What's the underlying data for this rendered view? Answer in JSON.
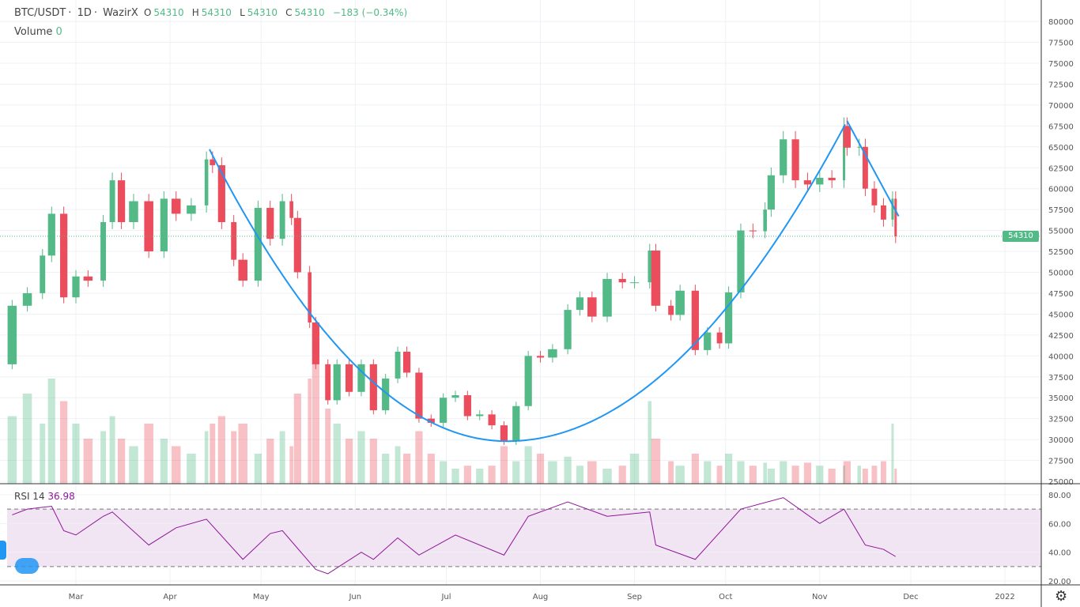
{
  "header": {
    "symbol": "BTC/USDT",
    "interval": "1D",
    "exchange": "WazirX",
    "o_label": "O",
    "o": "54310",
    "h_label": "H",
    "h": "54310",
    "l_label": "L",
    "l": "54310",
    "c_label": "C",
    "c": "54310",
    "change": "−183 (−0.34%)",
    "volume_label": "Volume",
    "volume": "0"
  },
  "rsi": {
    "label": "RSI 14",
    "value": "36.98"
  },
  "last_price_label": "54310",
  "colors": {
    "up": "#53b987",
    "down": "#eb4d5c",
    "rsi": "#8e1599",
    "drawing": "#2196f3",
    "rsi_band": "#f1e4f3"
  },
  "chart_data": [
    {
      "type": "candlestick",
      "pane": "price",
      "ylim": [
        25000,
        80000
      ],
      "yticks": [
        25000,
        27500,
        30000,
        32500,
        35000,
        37500,
        40000,
        42500,
        45000,
        47500,
        50000,
        52500,
        55000,
        57500,
        60000,
        62500,
        65000,
        67500,
        70000,
        72500,
        75000,
        77500,
        80000
      ],
      "xticks": [
        {
          "date": "2021-03-01",
          "label": "Mar"
        },
        {
          "date": "2021-04-01",
          "label": "Apr"
        },
        {
          "date": "2021-05-01",
          "label": "May"
        },
        {
          "date": "2021-06-01",
          "label": "Jun"
        },
        {
          "date": "2021-07-01",
          "label": "Jul"
        },
        {
          "date": "2021-08-01",
          "label": "Aug"
        },
        {
          "date": "2021-09-01",
          "label": "Sep"
        },
        {
          "date": "2021-10-01",
          "label": "Oct"
        },
        {
          "date": "2021-11-01",
          "label": "Nov"
        },
        {
          "date": "2021-12-01",
          "label": "Dec"
        },
        {
          "date": "2022-01-01",
          "label": "2022"
        }
      ],
      "grid": true,
      "open_start": 39000,
      "dates": [
        "2021-02-08",
        "2021-02-13",
        "2021-02-18",
        "2021-02-21",
        "2021-02-25",
        "2021-03-01",
        "2021-03-05",
        "2021-03-10",
        "2021-03-13",
        "2021-03-16",
        "2021-03-20",
        "2021-03-25",
        "2021-03-30",
        "2021-04-03",
        "2021-04-08",
        "2021-04-13",
        "2021-04-15",
        "2021-04-18",
        "2021-04-22",
        "2021-04-25",
        "2021-04-30",
        "2021-05-04",
        "2021-05-08",
        "2021-05-11",
        "2021-05-13",
        "2021-05-17",
        "2021-05-19",
        "2021-05-23",
        "2021-05-26",
        "2021-05-30",
        "2021-06-03",
        "2021-06-07",
        "2021-06-11",
        "2021-06-15",
        "2021-06-18",
        "2021-06-22",
        "2021-06-26",
        "2021-06-30",
        "2021-07-04",
        "2021-07-08",
        "2021-07-12",
        "2021-07-16",
        "2021-07-20",
        "2021-07-24",
        "2021-07-28",
        "2021-08-01",
        "2021-08-05",
        "2021-08-10",
        "2021-08-14",
        "2021-08-18",
        "2021-08-23",
        "2021-08-28",
        "2021-09-01",
        "2021-09-06",
        "2021-09-08",
        "2021-09-13",
        "2021-09-16",
        "2021-09-21",
        "2021-09-25",
        "2021-09-29",
        "2021-10-02",
        "2021-10-06",
        "2021-10-10",
        "2021-10-14",
        "2021-10-16",
        "2021-10-20",
        "2021-10-24",
        "2021-10-28",
        "2021-11-01",
        "2021-11-05",
        "2021-11-09",
        "2021-11-10",
        "2021-11-14",
        "2021-11-16",
        "2021-11-19",
        "2021-11-22",
        "2021-11-25",
        "2021-11-26"
      ],
      "close": [
        46000,
        47500,
        52000,
        57000,
        47000,
        49500,
        49000,
        56000,
        61000,
        56000,
        58500,
        52500,
        58800,
        57000,
        58000,
        63500,
        62800,
        56000,
        51500,
        49000,
        57700,
        54000,
        58500,
        56500,
        50000,
        44000,
        39000,
        34700,
        39000,
        35700,
        39000,
        33500,
        37300,
        40500,
        38000,
        32500,
        32000,
        35000,
        35300,
        32800,
        33000,
        31700,
        29800,
        34000,
        40000,
        39800,
        40800,
        45500,
        47000,
        44700,
        49200,
        48800,
        48800,
        52600,
        46000,
        44900,
        47800,
        40700,
        42800,
        41500,
        47600,
        55000,
        54900,
        57500,
        61600,
        65900,
        61000,
        60500,
        61300,
        61000,
        67500,
        64900,
        65000,
        60000,
        58000,
        56300,
        58800,
        54310
      ],
      "volume_relative": [
        45,
        60,
        40,
        70,
        55,
        40,
        30,
        35,
        45,
        30,
        25,
        40,
        30,
        25,
        20,
        35,
        40,
        45,
        35,
        40,
        20,
        30,
        35,
        25,
        60,
        70,
        80,
        50,
        40,
        30,
        35,
        30,
        20,
        25,
        20,
        35,
        20,
        15,
        10,
        12,
        10,
        12,
        25,
        15,
        25,
        20,
        15,
        18,
        12,
        15,
        10,
        12,
        20,
        55,
        30,
        15,
        12,
        20,
        15,
        12,
        20,
        15,
        12,
        14,
        10,
        15,
        12,
        14,
        12,
        10,
        12,
        15,
        12,
        10,
        12,
        15,
        40,
        10
      ]
    },
    {
      "type": "line",
      "pane": "rsi",
      "title": "RSI 14",
      "ylim": [
        15,
        85
      ],
      "yticks": [
        20,
        40,
        60,
        80
      ],
      "bands": [
        30,
        70
      ],
      "dates": [
        "2021-02-08",
        "2021-02-13",
        "2021-02-21",
        "2021-02-25",
        "2021-03-01",
        "2021-03-10",
        "2021-03-13",
        "2021-03-25",
        "2021-04-03",
        "2021-04-13",
        "2021-04-25",
        "2021-05-04",
        "2021-05-08",
        "2021-05-19",
        "2021-05-23",
        "2021-06-03",
        "2021-06-07",
        "2021-06-15",
        "2021-06-22",
        "2021-07-04",
        "2021-07-20",
        "2021-07-28",
        "2021-08-10",
        "2021-08-23",
        "2021-09-06",
        "2021-09-08",
        "2021-09-21",
        "2021-10-06",
        "2021-10-20",
        "2021-11-01",
        "2021-11-09",
        "2021-11-16",
        "2021-11-22",
        "2021-11-26"
      ],
      "values": [
        66,
        70,
        72,
        55,
        52,
        65,
        68,
        45,
        57,
        63,
        35,
        53,
        55,
        28,
        25,
        40,
        35,
        50,
        38,
        52,
        38,
        65,
        75,
        65,
        68,
        45,
        35,
        70,
        78,
        60,
        70,
        45,
        42,
        37
      ]
    },
    {
      "type": "drawing",
      "pane": "price",
      "items": [
        {
          "kind": "arc",
          "start": {
            "date": "2021-04-14",
            "price": 64700
          },
          "bottom": {
            "date": "2021-07-21",
            "price": 29800
          },
          "end": {
            "date": "2021-11-10",
            "price": 68100
          }
        },
        {
          "kind": "trend-line",
          "start": {
            "date": "2021-11-10",
            "price": 68100
          },
          "end": {
            "date": "2021-11-27",
            "price": 56700
          }
        }
      ]
    }
  ]
}
